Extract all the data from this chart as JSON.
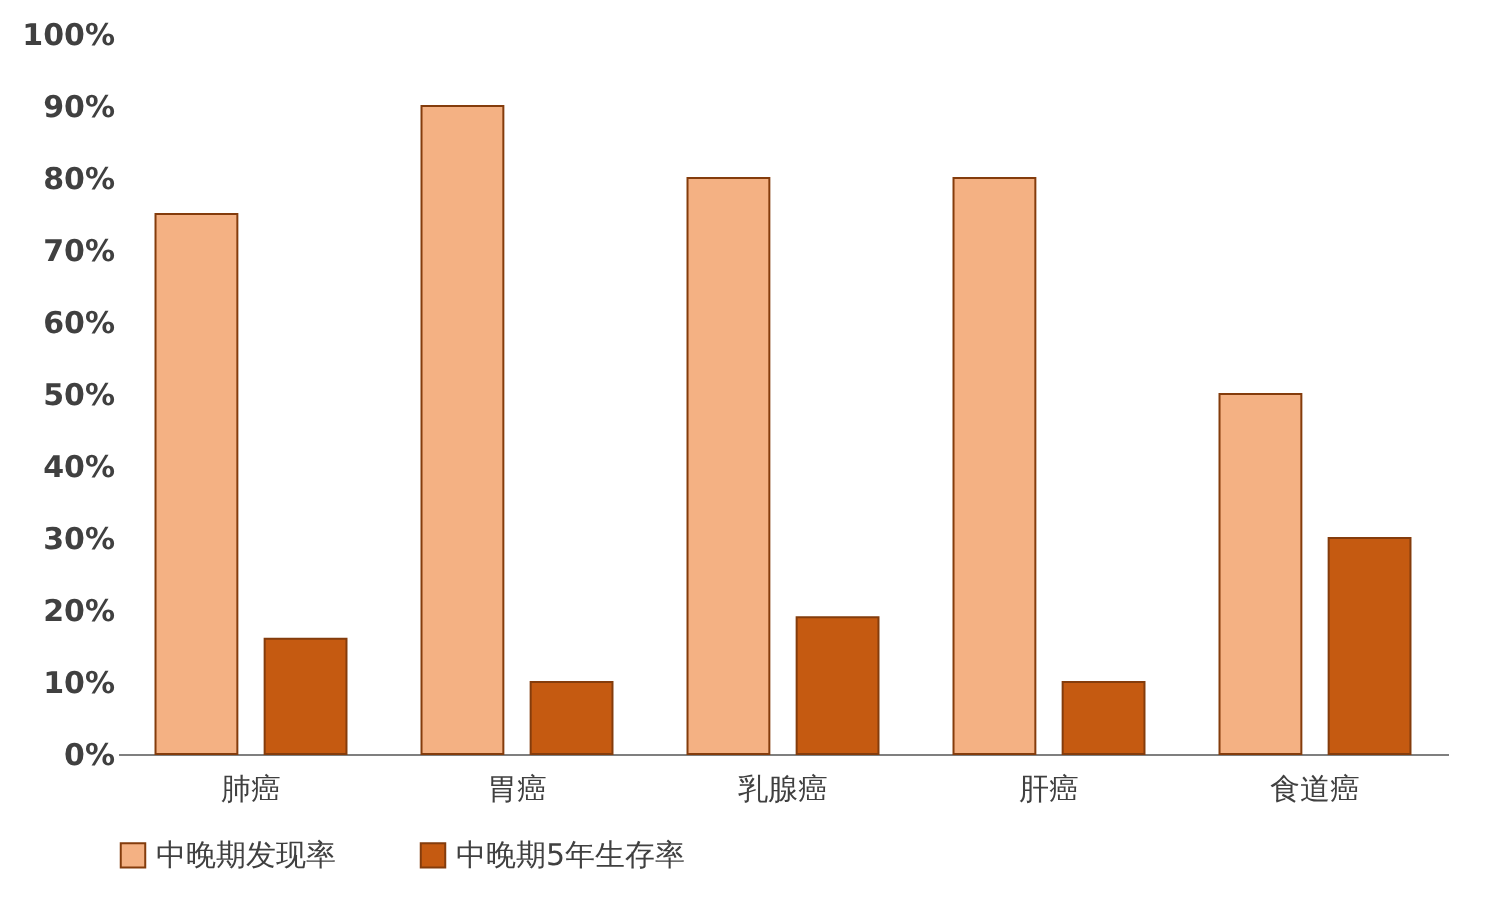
{
  "chart_data": {
    "type": "bar",
    "categories": [
      "肺癌",
      "胃癌",
      "乳腺癌",
      "肝癌",
      "食道癌"
    ],
    "series": [
      {
        "name": "中晚期发现率",
        "color": "#f4b183",
        "values": [
          75,
          90,
          80,
          80,
          50
        ]
      },
      {
        "name": "中晚期5年生存率",
        "color": "#c55a11",
        "values": [
          16,
          10,
          19,
          10,
          30
        ]
      }
    ],
    "ylim": [
      0,
      100
    ],
    "yticks": [
      {
        "value": 0,
        "label": "0%"
      },
      {
        "value": 10,
        "label": "10%"
      },
      {
        "value": 20,
        "label": "20%"
      },
      {
        "value": 30,
        "label": "30%"
      },
      {
        "value": 40,
        "label": "40%"
      },
      {
        "value": 50,
        "label": "50%"
      },
      {
        "value": 60,
        "label": "60%"
      },
      {
        "value": 70,
        "label": "70%"
      },
      {
        "value": 80,
        "label": "80%"
      },
      {
        "value": 90,
        "label": "90%"
      },
      {
        "value": 100,
        "label": "100%"
      }
    ],
    "grid": false,
    "legend": "bottom"
  }
}
